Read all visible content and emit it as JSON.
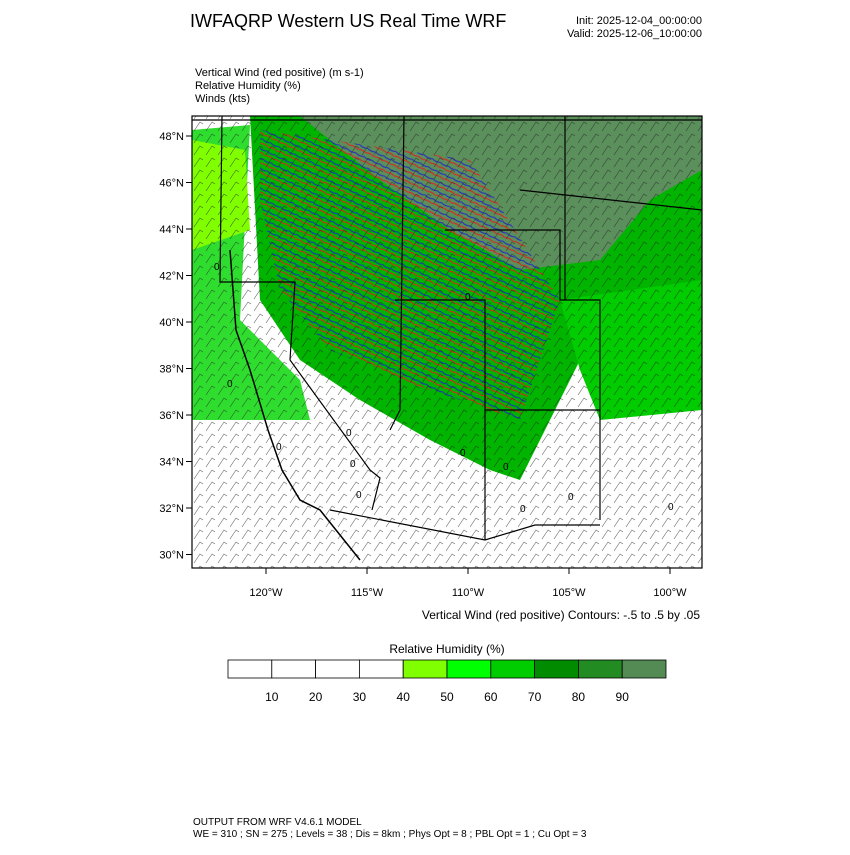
{
  "header": {
    "title": "IWFAQRP Western US Real Time WRF",
    "init": "Init: 2025-12-04_00:00:00",
    "valid": "Valid: 2025-12-06_10:00:00"
  },
  "fields": [
    "Vertical Wind (red positive)   (m s-1)",
    "Relative Humidity   (%)",
    "Winds   (kts)"
  ],
  "map": {
    "lat_labels": [
      "48°N",
      "46°N",
      "44°N",
      "42°N",
      "40°N",
      "38°N",
      "36°N",
      "34°N",
      "32°N",
      "30°N"
    ],
    "lon_labels": [
      "120°W",
      "115°W",
      "110°W",
      "105°W",
      "100°W"
    ],
    "contour_labels": [
      "0",
      "0",
      "0",
      "0",
      "0",
      "0",
      "0",
      "0",
      "0",
      "0",
      "0",
      "0"
    ],
    "contour_note": "Vertical Wind (red positive) Contours: -.5 to .5 by .05"
  },
  "colorbar": {
    "title": "Relative Humidity  (%)",
    "labels": [
      "10",
      "20",
      "30",
      "40",
      "50",
      "60",
      "70",
      "80",
      "90"
    ],
    "colors": [
      "#ffffff",
      "#ffffff",
      "#ffffff",
      "#ffffff",
      "#7fff00",
      "#00ff00",
      "#00cd00",
      "#008b00",
      "#228b22",
      "#548b54"
    ]
  },
  "footer": {
    "line1": "OUTPUT FROM WRF V4.6.1 MODEL",
    "line2": "WE = 310 ; SN = 275 ; Levels = 38 ; Dis = 8km ; Phys Opt = 8 ; PBL Opt = 1 ; Cu Opt = 3"
  }
}
